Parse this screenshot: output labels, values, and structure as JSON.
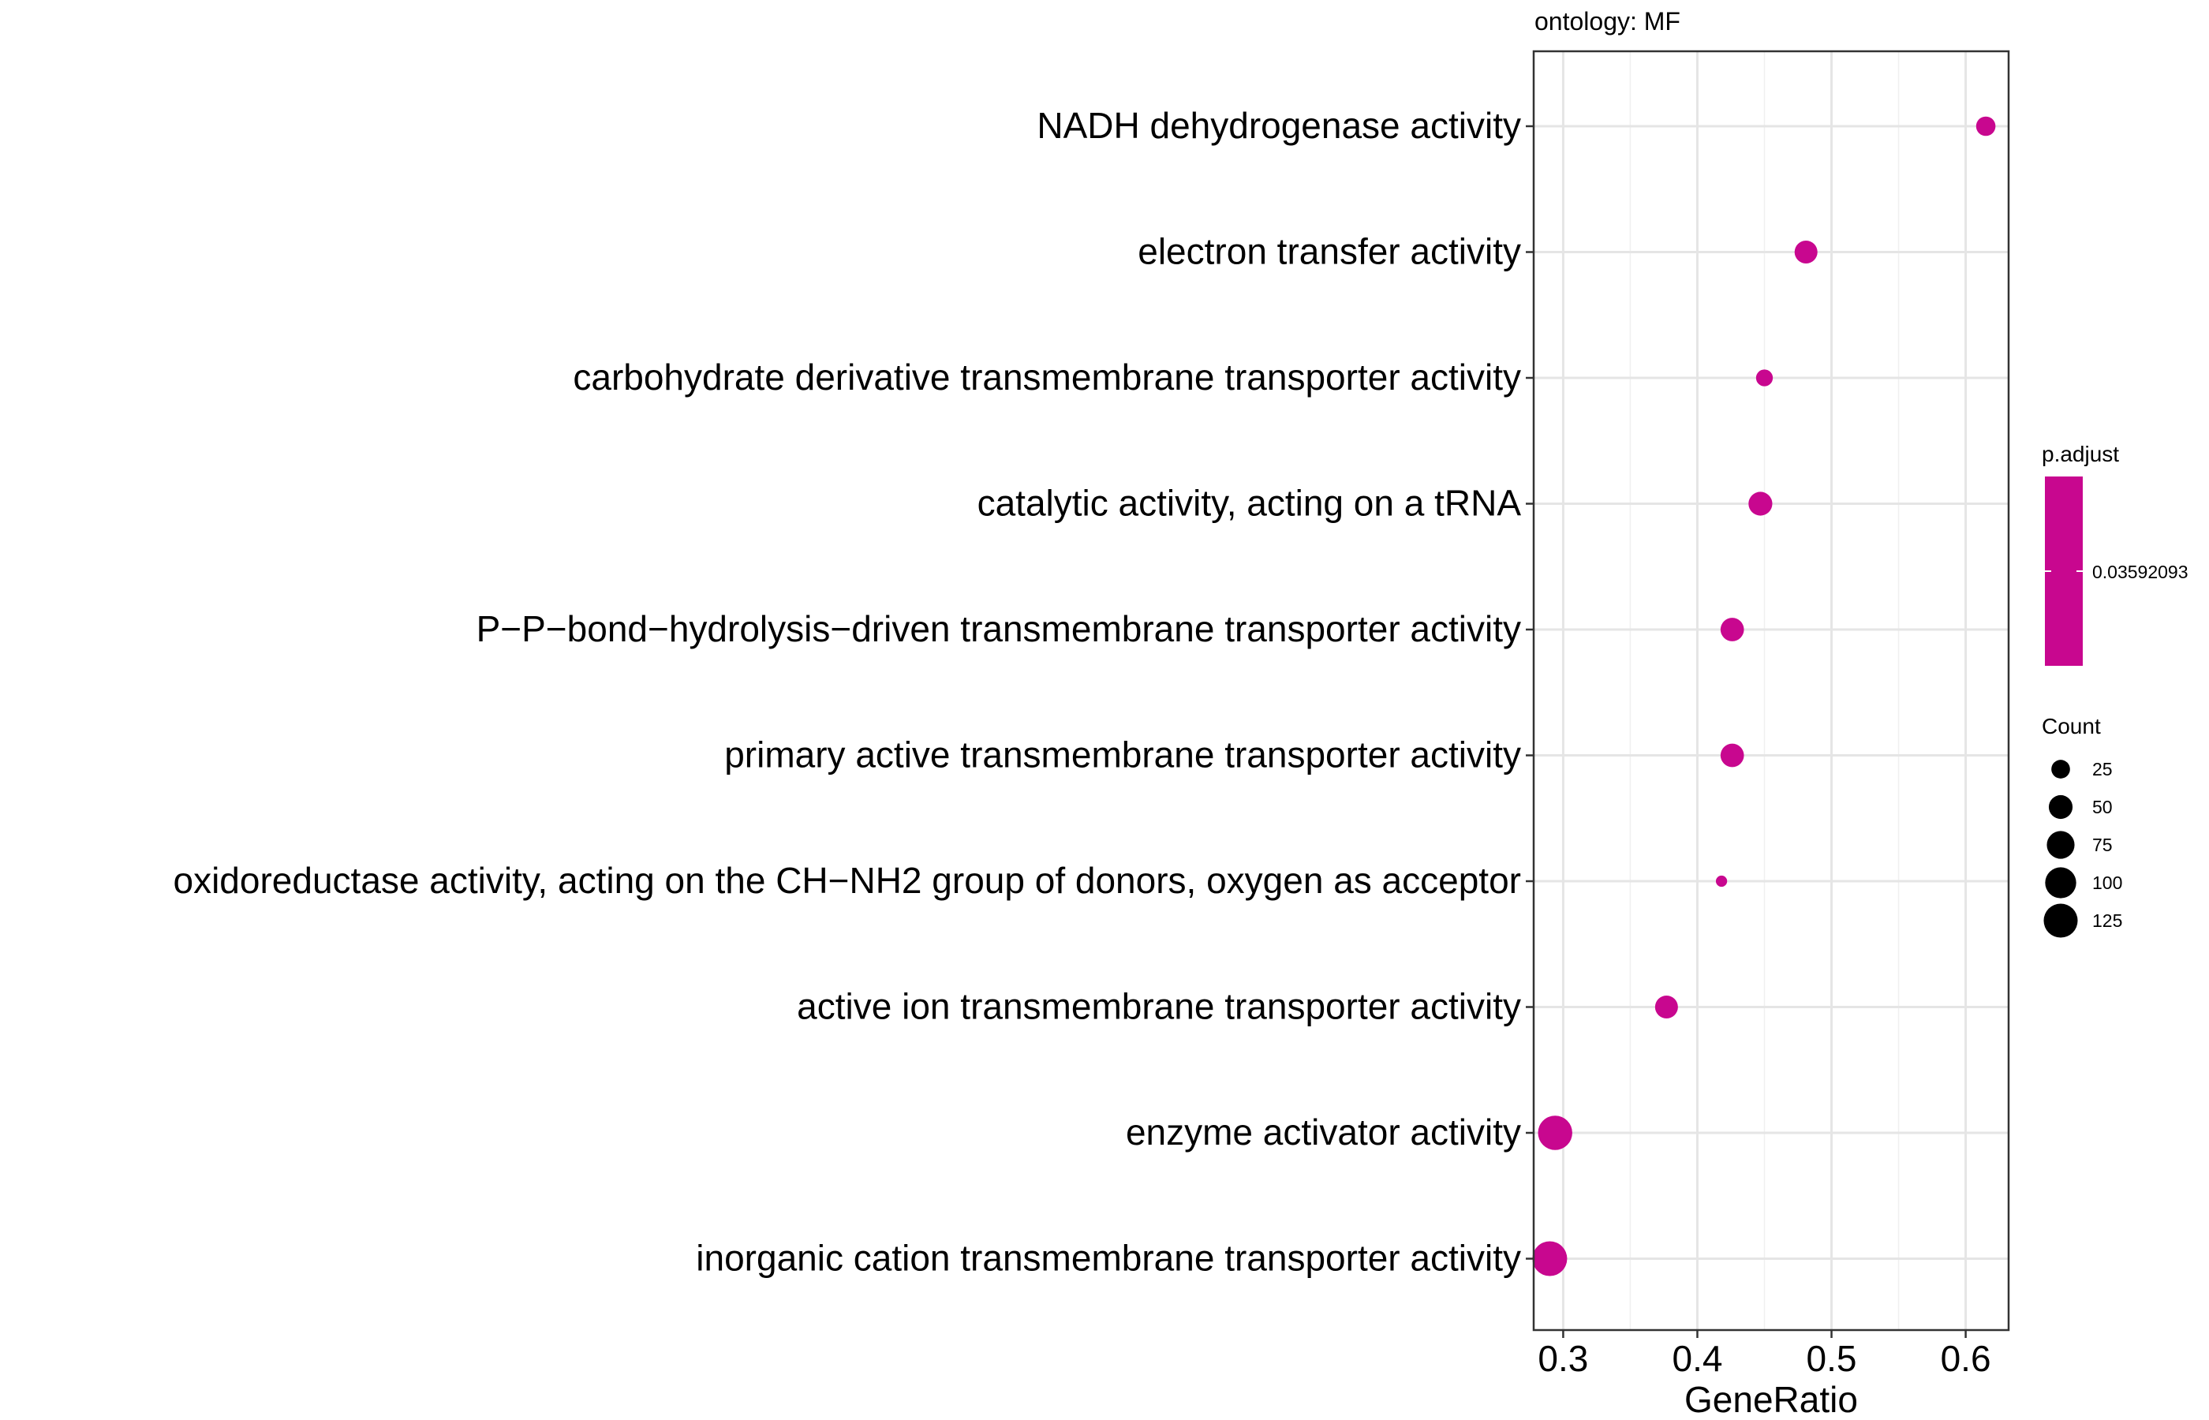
{
  "chart_data": {
    "type": "scatter",
    "facet_label": "ontology: MF",
    "xlabel": "GeneRatio",
    "ylabel": "",
    "xlim": [
      0.278,
      0.632
    ],
    "xticks": [
      "0.3",
      "0.4",
      "0.5",
      "0.6"
    ],
    "grid": true,
    "point_color": "#C8078F",
    "categories": [
      "NADH dehydrogenase activity",
      "electron transfer activity",
      "carbohydrate derivative transmembrane transporter activity",
      "catalytic activity, acting on a tRNA",
      "P−P−bond−hydrolysis−driven transmembrane transporter activity",
      "primary active transmembrane transporter activity",
      "oxidoreductase activity, acting on the CH−NH2 group of donors, oxygen as acceptor",
      "active ion transmembrane transporter activity",
      "enzyme activator activity",
      "inorganic cation transmembrane transporter activity"
    ],
    "points": [
      {
        "x": 0.615,
        "count": 28
      },
      {
        "x": 0.481,
        "count": 45
      },
      {
        "x": 0.45,
        "count": 18
      },
      {
        "x": 0.447,
        "count": 50
      },
      {
        "x": 0.426,
        "count": 48
      },
      {
        "x": 0.426,
        "count": 48
      },
      {
        "x": 0.418,
        "count": 4
      },
      {
        "x": 0.377,
        "count": 45
      },
      {
        "x": 0.294,
        "count": 128
      },
      {
        "x": 0.29,
        "count": 132
      }
    ],
    "legend": {
      "color": {
        "title": "p.adjust",
        "label": "0.03592093"
      },
      "size": {
        "title": "Count",
        "labels": [
          "25",
          "50",
          "75",
          "100",
          "125"
        ],
        "values": [
          25,
          50,
          75,
          100,
          125
        ]
      }
    }
  }
}
